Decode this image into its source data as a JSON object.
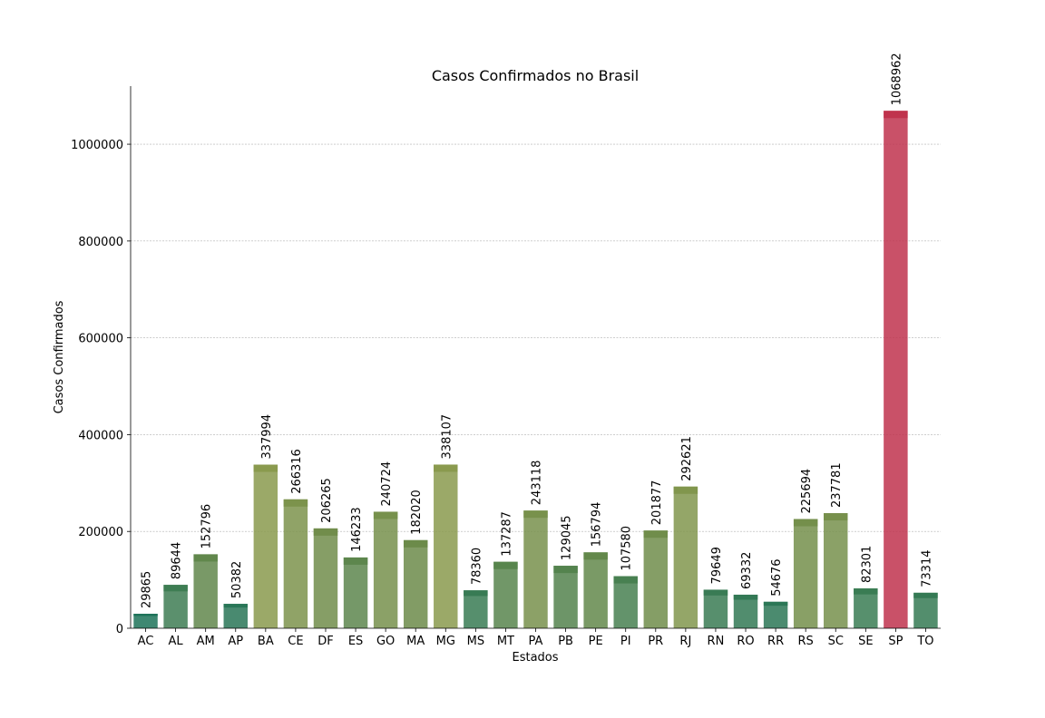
{
  "chart_data": {
    "type": "bar",
    "title": "Casos Confirmados no Brasil",
    "xlabel": "Estados",
    "ylabel": "Casos Confirmados",
    "ylim": [
      0,
      1120000
    ],
    "yticks": [
      0,
      200000,
      400000,
      600000,
      800000,
      1000000
    ],
    "grid": "horizontal dashed",
    "categories": [
      "AC",
      "AL",
      "AM",
      "AP",
      "BA",
      "CE",
      "DF",
      "ES",
      "GO",
      "MA",
      "MG",
      "MS",
      "MT",
      "PA",
      "PB",
      "PE",
      "PI",
      "PR",
      "RJ",
      "RN",
      "RO",
      "RR",
      "RS",
      "SC",
      "SE",
      "SP",
      "TO"
    ],
    "values": [
      29865,
      89644,
      152796,
      50382,
      337994,
      266316,
      206265,
      146233,
      240724,
      182020,
      338107,
      78360,
      137287,
      243118,
      129045,
      156794,
      107580,
      201877,
      292621,
      79649,
      69332,
      54676,
      225694,
      237781,
      82301,
      1068962,
      73314
    ],
    "colors": {
      "low": "#0d6e5c",
      "mid": "#6a8a4a",
      "high": "#8a9a4e",
      "max": "#c0334d"
    }
  }
}
